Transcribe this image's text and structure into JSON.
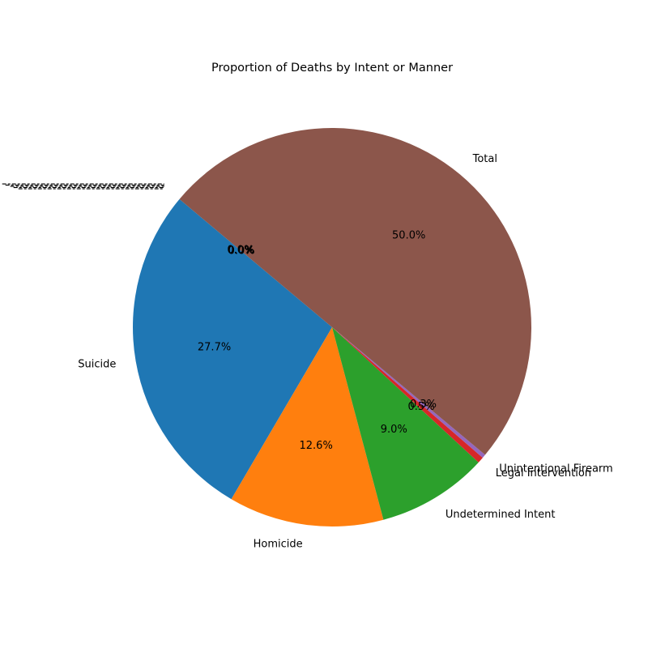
{
  "chart_data": {
    "type": "pie",
    "title": "Proportion of Deaths by Intent or Manner",
    "start_angle_deg": 140,
    "direction": "counterclockwise",
    "categories": [
      "Suicide",
      "Homicide",
      "Undetermined Intent",
      "Legal Intervention",
      "Unintentional Firearm",
      "Total"
    ],
    "values": [
      27.7,
      12.6,
      9.0,
      0.5,
      0.3,
      50.0
    ],
    "percent_labels": [
      "27.7%",
      "12.6%",
      "9.0%",
      "0.5%",
      "0.3%",
      "50.0%"
    ],
    "colors": [
      "#1f77b4",
      "#ff7f0e",
      "#2ca02c",
      "#d62728",
      "#9467bd",
      "#8c564b"
    ],
    "overlapping_zero_label_text": "0.0%"
  }
}
